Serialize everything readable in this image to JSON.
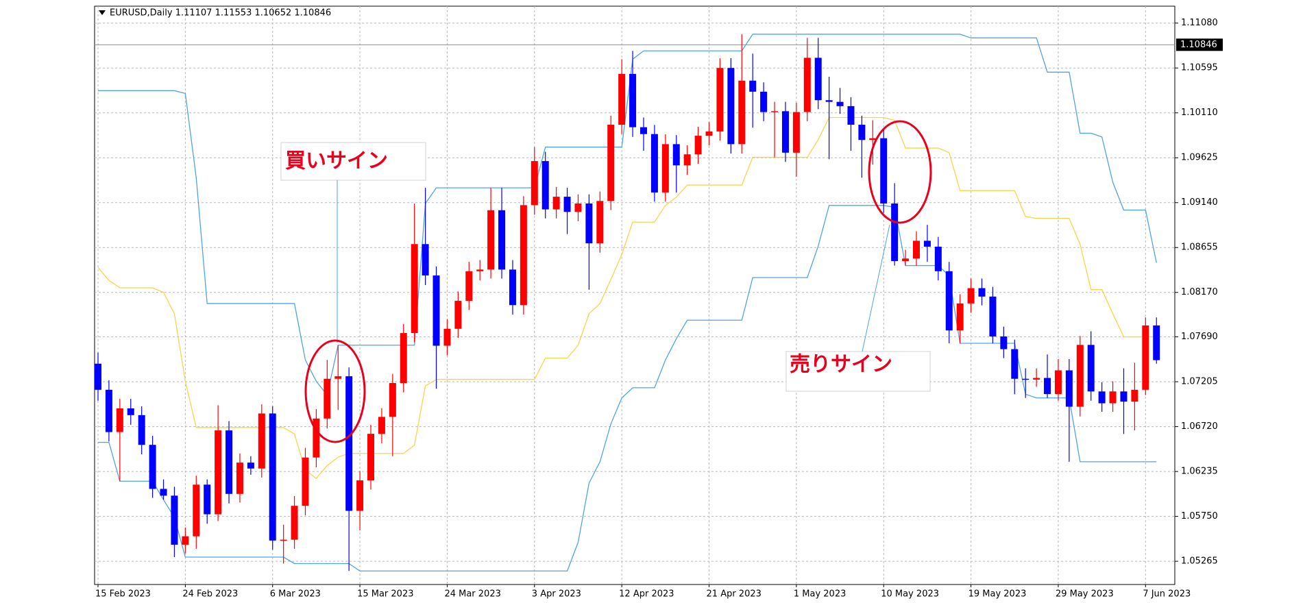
{
  "chart_data": {
    "type": "candlestick",
    "title": "EURUSD,Daily  1.11107 1.11553 1.10652 1.10846",
    "categories": [
      "15 Feb 2023",
      null,
      null,
      null,
      null,
      null,
      null,
      null,
      "24 Feb 2023",
      null,
      null,
      null,
      null,
      null,
      null,
      null,
      "6 Mar 2023",
      null,
      null,
      null,
      null,
      null,
      null,
      null,
      "15 Mar 2023",
      null,
      null,
      null,
      null,
      null,
      null,
      null,
      "24 Mar 2023",
      null,
      null,
      null,
      null,
      null,
      null,
      null,
      "3 Apr 2023",
      null,
      null,
      null,
      null,
      null,
      null,
      null,
      "12 Apr 2023",
      null,
      null,
      null,
      null,
      null,
      null,
      null,
      "21 Apr 2023",
      null,
      null,
      null,
      null,
      null,
      null,
      null,
      "1 May 2023",
      null,
      null,
      null,
      null,
      null,
      null,
      null,
      "10 May 2023",
      null,
      null,
      null,
      null,
      null,
      null,
      null,
      "19 May 2023",
      null,
      null,
      null,
      null,
      null,
      null,
      null,
      "29 May 2023",
      null,
      null,
      null,
      null,
      null,
      null,
      null,
      "7 Jun 2023",
      null
    ],
    "open": [
      1.074,
      1.07118,
      1.06661,
      1.06917,
      1.06844,
      1.06523,
      1.06047,
      1.05974,
      1.05444,
      1.05535,
      1.06093,
      1.05773,
      1.06679,
      1.05993,
      1.06331,
      1.06267,
      1.06862,
      1.05489,
      1.05498,
      1.05864,
      1.06386,
      1.06807,
      1.07237,
      1.07264,
      1.0581,
      1.06139,
      1.06642,
      1.06825,
      1.07191,
      1.07731,
      1.08692,
      1.08353,
      1.07594,
      1.07777,
      1.08079,
      1.08399,
      1.08417,
      1.09058,
      1.08417,
      1.08033,
      1.09113,
      1.09589,
      1.09067,
      1.09204,
      1.0904,
      1.09131,
      1.08701,
      1.09158,
      1.09982,
      1.10531,
      1.09955,
      1.09881,
      1.0925,
      1.09772,
      1.09543,
      1.09662,
      1.09863,
      1.09909,
      1.10595,
      1.09772,
      1.10458,
      1.10339,
      1.10119,
      1.10128,
      1.0968,
      1.10119,
      1.10705,
      1.10247,
      1.10229,
      1.10183,
      1.09982,
      1.09817,
      1.09836,
      1.09131,
      1.08509,
      1.08536,
      1.08728,
      1.08664,
      1.08399,
      1.07759,
      1.08051,
      1.08216,
      1.08125,
      1.07694,
      1.07557,
      1.07237,
      1.07228,
      1.07246,
      1.07072,
      1.07328,
      1.06935,
      1.07603,
      1.071,
      1.06972,
      1.071,
      1.0699,
      1.07118,
      1.07813
    ],
    "high": [
      1.0752,
      1.0722,
      1.0702,
      1.0702,
      1.0694,
      1.0662,
      1.0615,
      1.0607,
      1.0563,
      1.0619,
      1.0615,
      1.0695,
      1.0678,
      1.0643,
      1.064,
      1.0696,
      1.0694,
      1.0566,
      1.0597,
      1.0649,
      1.0691,
      1.0744,
      1.076,
      1.0736,
      1.0624,
      1.0674,
      1.0692,
      1.0729,
      1.0783,
      1.0913,
      1.093,
      1.0845,
      1.0788,
      1.0818,
      1.085,
      1.0852,
      1.093,
      1.093,
      1.0852,
      1.0921,
      1.0974,
      1.0969,
      1.0931,
      1.093,
      1.0923,
      1.0923,
      1.0926,
      1.1008,
      1.1069,
      1.1078,
      1.1006,
      1.0998,
      1.0988,
      1.0987,
      1.0976,
      1.0996,
      1.1001,
      1.107,
      1.107,
      1.1096,
      1.1075,
      1.1044,
      1.1023,
      1.1023,
      1.1022,
      1.1092,
      1.1092,
      1.105,
      1.1038,
      1.1028,
      1.1008,
      1.1003,
      1.0994,
      1.0935,
      1.0863,
      1.0883,
      1.089,
      1.0877,
      1.085,
      1.0815,
      1.0832,
      1.0832,
      1.0823,
      1.078,
      1.0766,
      1.0735,
      1.0735,
      1.075,
      1.0745,
      1.0745,
      1.077,
      1.0775,
      1.072,
      1.0721,
      1.0735,
      1.0741,
      1.079,
      1.079
    ],
    "low": [
      1.07,
      1.0656,
      1.0613,
      1.0674,
      1.0642,
      1.0595,
      1.0593,
      1.0531,
      1.0535,
      1.054,
      1.0567,
      1.057,
      1.0589,
      1.059,
      1.062,
      1.0617,
      1.0539,
      1.0524,
      1.054,
      1.0576,
      1.0628,
      1.067,
      1.069,
      1.0516,
      1.056,
      1.0604,
      1.0654,
      1.064,
      1.0709,
      1.0763,
      1.0825,
      1.0713,
      1.0749,
      1.0768,
      1.0798,
      1.083,
      1.0832,
      1.0832,
      1.0793,
      1.0793,
      1.0901,
      1.0897,
      1.0897,
      1.088,
      1.0894,
      1.082,
      1.086,
      1.0906,
      1.0988,
      1.0985,
      1.097,
      1.0915,
      1.0915,
      1.0925,
      1.0944,
      1.0956,
      1.0976,
      1.0981,
      1.0967,
      1.0967,
      1.0995,
      1.1002,
      1.0963,
      1.0958,
      1.0942,
      1.1002,
      1.1015,
      1.0961,
      1.101,
      1.097,
      1.0941,
      1.0955,
      1.0903,
      1.0846,
      1.0846,
      1.0846,
      1.085,
      1.083,
      1.0762,
      1.0762,
      1.0795,
      1.0803,
      1.0762,
      1.0746,
      1.0707,
      1.0703,
      1.0715,
      1.0703,
      1.07,
      1.0634,
      1.0683,
      1.07,
      1.0688,
      1.0688,
      1.0664,
      1.0668,
      1.0706,
      1.074
    ],
    "close": [
      1.07118,
      1.06661,
      1.06917,
      1.06844,
      1.06523,
      1.06047,
      1.05974,
      1.05444,
      1.05535,
      1.06093,
      1.05773,
      1.06679,
      1.05993,
      1.06331,
      1.06267,
      1.06862,
      1.05489,
      1.05498,
      1.05864,
      1.06386,
      1.06807,
      1.07237,
      1.07264,
      1.0581,
      1.06139,
      1.06642,
      1.06825,
      1.07191,
      1.07731,
      1.08692,
      1.08353,
      1.07594,
      1.07777,
      1.08079,
      1.08399,
      1.08417,
      1.09058,
      1.08417,
      1.08033,
      1.09113,
      1.09589,
      1.09067,
      1.09204,
      1.0904,
      1.09131,
      1.08701,
      1.09158,
      1.09982,
      1.10531,
      1.09955,
      1.09881,
      1.0925,
      1.09772,
      1.09543,
      1.09662,
      1.09863,
      1.09909,
      1.10595,
      1.09772,
      1.10458,
      1.10339,
      1.10119,
      1.10128,
      1.0968,
      1.10119,
      1.10705,
      1.10247,
      1.10229,
      1.10183,
      1.09982,
      1.09817,
      1.09836,
      1.09131,
      1.08509,
      1.08536,
      1.08728,
      1.08664,
      1.08399,
      1.07759,
      1.08051,
      1.08216,
      1.08125,
      1.07694,
      1.07557,
      1.07237,
      1.07228,
      1.07246,
      1.07072,
      1.07328,
      1.06935,
      1.07603,
      1.071,
      1.06972,
      1.071,
      1.0699,
      1.07118,
      1.07813,
      1.07438
    ],
    "up_color": "#ff0000",
    "down_color": "#0000ff",
    "series": [
      {
        "color": "#4fa3e6",
        "values": [
          1.1035,
          1.1035,
          1.1035,
          1.1035,
          1.1035,
          1.1035,
          1.1035,
          1.1035,
          1.1032,
          1.0941,
          1.0805,
          1.0805,
          1.0805,
          1.0805,
          1.0805,
          1.0805,
          1.0805,
          1.0805,
          1.0805,
          1.0744,
          1.0721,
          1.0706,
          1.076,
          1.076,
          1.076,
          1.076,
          1.076,
          1.076,
          1.076,
          1.076,
          1.0913,
          1.093,
          1.093,
          1.093,
          1.093,
          1.093,
          1.093,
          1.093,
          1.093,
          1.093,
          1.093,
          1.0974,
          1.0974,
          1.0974,
          1.0974,
          1.0974,
          1.0974,
          1.0974,
          1.0974,
          1.1069,
          1.1078,
          1.1078,
          1.1078,
          1.1078,
          1.1078,
          1.1078,
          1.1078,
          1.1078,
          1.1078,
          1.1078,
          1.1096,
          1.1096,
          1.1096,
          1.1096,
          1.1096,
          1.1096,
          1.1096,
          1.1096,
          1.1096,
          1.1096,
          1.1096,
          1.1096,
          1.1096,
          1.1096,
          1.1096,
          1.1096,
          1.1096,
          1.1096,
          1.1096,
          1.1096,
          1.1092,
          1.1092,
          1.1092,
          1.1092,
          1.1092,
          1.1092,
          1.1092,
          1.1055,
          1.1055,
          1.1055,
          1.0989,
          1.0989,
          1.0985,
          1.0936,
          1.0906,
          1.0906,
          1.0906,
          1.0849
        ]
      },
      {
        "color": "#f7d44c",
        "values": [
          1.0844,
          1.083,
          1.0822,
          1.0822,
          1.0822,
          1.0822,
          1.0817,
          1.0794,
          1.0721,
          1.0671,
          1.0671,
          1.0671,
          1.0671,
          1.0671,
          1.0671,
          1.0671,
          1.0671,
          1.0671,
          1.0664,
          1.0625,
          1.0616,
          1.063,
          1.0639,
          1.0643,
          1.0643,
          1.0643,
          1.0643,
          1.0643,
          1.0643,
          1.0652,
          1.0716,
          1.0723,
          1.0723,
          1.0723,
          1.0723,
          1.0723,
          1.0723,
          1.0723,
          1.0723,
          1.0723,
          1.0723,
          1.0746,
          1.0746,
          1.0746,
          1.076,
          1.0794,
          1.0805,
          1.0831,
          1.0858,
          1.0893,
          1.0893,
          1.0893,
          1.0911,
          1.092,
          1.0933,
          1.0933,
          1.0933,
          1.0933,
          1.0933,
          1.0933,
          1.0963,
          1.0963,
          1.0963,
          1.0963,
          1.0963,
          1.0963,
          1.0982,
          1.1006,
          1.1006,
          1.1006,
          1.1006,
          1.1006,
          1.1006,
          1.1003,
          1.0973,
          1.0973,
          1.0973,
          1.0973,
          1.0968,
          1.0927,
          1.0927,
          1.0927,
          1.0927,
          1.0927,
          1.0927,
          1.0899,
          1.0897,
          1.0897,
          1.0897,
          1.0897,
          1.0869,
          1.082,
          1.082,
          1.0794,
          1.0769,
          1.0769,
          1.0769,
          1.0769
        ]
      },
      {
        "color": "#4fa3e6",
        "values": [
          1.0655,
          1.0655,
          1.0613,
          1.0613,
          1.0613,
          1.0613,
          1.0593,
          1.0574,
          1.0531,
          1.0531,
          1.0531,
          1.0531,
          1.0531,
          1.0531,
          1.0531,
          1.0531,
          1.0531,
          1.0531,
          1.0524,
          1.0524,
          1.0524,
          1.0524,
          1.0524,
          1.0524,
          1.0516,
          1.0516,
          1.0516,
          1.0516,
          1.0516,
          1.0516,
          1.0516,
          1.0516,
          1.0516,
          1.0516,
          1.0516,
          1.0516,
          1.0516,
          1.0516,
          1.0516,
          1.0516,
          1.0516,
          1.0516,
          1.0516,
          1.0516,
          1.0547,
          1.0611,
          1.0634,
          1.0675,
          1.0703,
          1.0714,
          1.0714,
          1.0714,
          1.0744,
          1.0767,
          1.0787,
          1.0787,
          1.0787,
          1.0787,
          1.0787,
          1.0787,
          1.0833,
          1.0833,
          1.0833,
          1.0833,
          1.0833,
          1.0833,
          1.0867,
          1.0911,
          1.0911,
          1.0911,
          1.0911,
          1.0911,
          1.0911,
          1.0909,
          1.0846,
          1.0846,
          1.0846,
          1.0846,
          1.0835,
          1.0762,
          1.0762,
          1.0762,
          1.0762,
          1.0762,
          1.0762,
          1.0707,
          1.0703,
          1.0703,
          1.0703,
          1.0703,
          1.0634,
          1.0634,
          1.0634,
          1.0634,
          1.0634,
          1.0634,
          1.0634,
          1.0634
        ]
      }
    ],
    "ylim": [
      1.05014,
      1.11263
    ],
    "yticks": [
      {
        "value": 1.1108,
        "label": "1.11080"
      },
      1.10595,
      {
        "value": 1.1011,
        "label": "1.10110"
      },
      1.09625,
      {
        "value": 1.0914,
        "label": "1.09140"
      },
      1.08655,
      {
        "value": 1.0817,
        "label": "1.08170"
      },
      {
        "value": 1.0769,
        "label": "1.07690"
      },
      1.07205,
      {
        "value": 1.0672,
        "label": "1.06720"
      },
      1.06235,
      {
        "value": 1.0575,
        "label": "1.05750"
      },
      1.05265
    ],
    "price_line": 1.10846,
    "grid": true,
    "annotations": [
      "買いサイン",
      "売りサイン"
    ]
  }
}
